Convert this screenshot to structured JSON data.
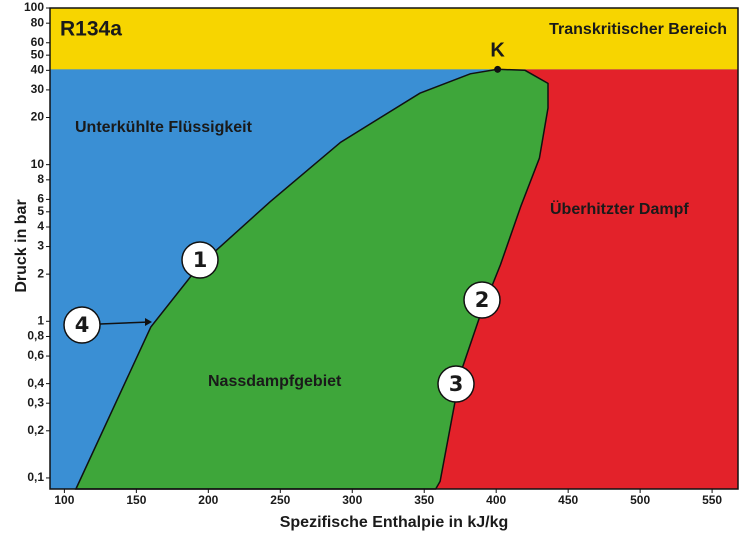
{
  "chart_data": {
    "type": "ph-diagram",
    "title": "R134a",
    "xlabel": "Spezifische Enthalpie in kJ/kg",
    "ylabel": "Druck in bar",
    "xlim": [
      90,
      568
    ],
    "ylim": [
      0.085,
      100
    ],
    "log_y": true,
    "xticks": [
      100,
      150,
      200,
      250,
      300,
      350,
      400,
      450,
      500,
      550
    ],
    "yticks": [
      {
        "value": 0.1,
        "label": "0,1"
      },
      {
        "value": 0.2,
        "label": "0,2"
      },
      {
        "value": 0.3,
        "label": "0,3"
      },
      {
        "value": 0.4,
        "label": "0,4"
      },
      {
        "value": 0.6,
        "label": "0,6"
      },
      {
        "value": 0.8,
        "label": "0,8"
      },
      1,
      2,
      3,
      4,
      5,
      6,
      8,
      10,
      20,
      30,
      40,
      50,
      60,
      80,
      100
    ],
    "x": [
      108,
      160,
      194,
      243,
      292,
      347,
      382,
      401,
      420,
      436,
      436,
      430,
      417,
      403,
      389,
      375,
      361,
      358
    ],
    "values": [
      0.085,
      0.92,
      2.28,
      5.8,
      13.9,
      28.6,
      38,
      40.6,
      40,
      33,
      23,
      11,
      5.4,
      2.3,
      1.1,
      0.46,
      0.095,
      0.085
    ],
    "colors": {
      "liquid": "#3a8fd4",
      "wet": "#3ea63a",
      "vapor": "#e3222a",
      "transcritical": "#f7d500"
    },
    "region_labels": {
      "transcritical": "Transkritischer Bereich",
      "liquid": "Unterkühlte Flüssigkeit",
      "vapor": "Überhitzter Dampf",
      "wet": "Nassdampfgebiet"
    },
    "critical_point": "K",
    "markers": [
      "1",
      "2",
      "3",
      "4"
    ]
  }
}
